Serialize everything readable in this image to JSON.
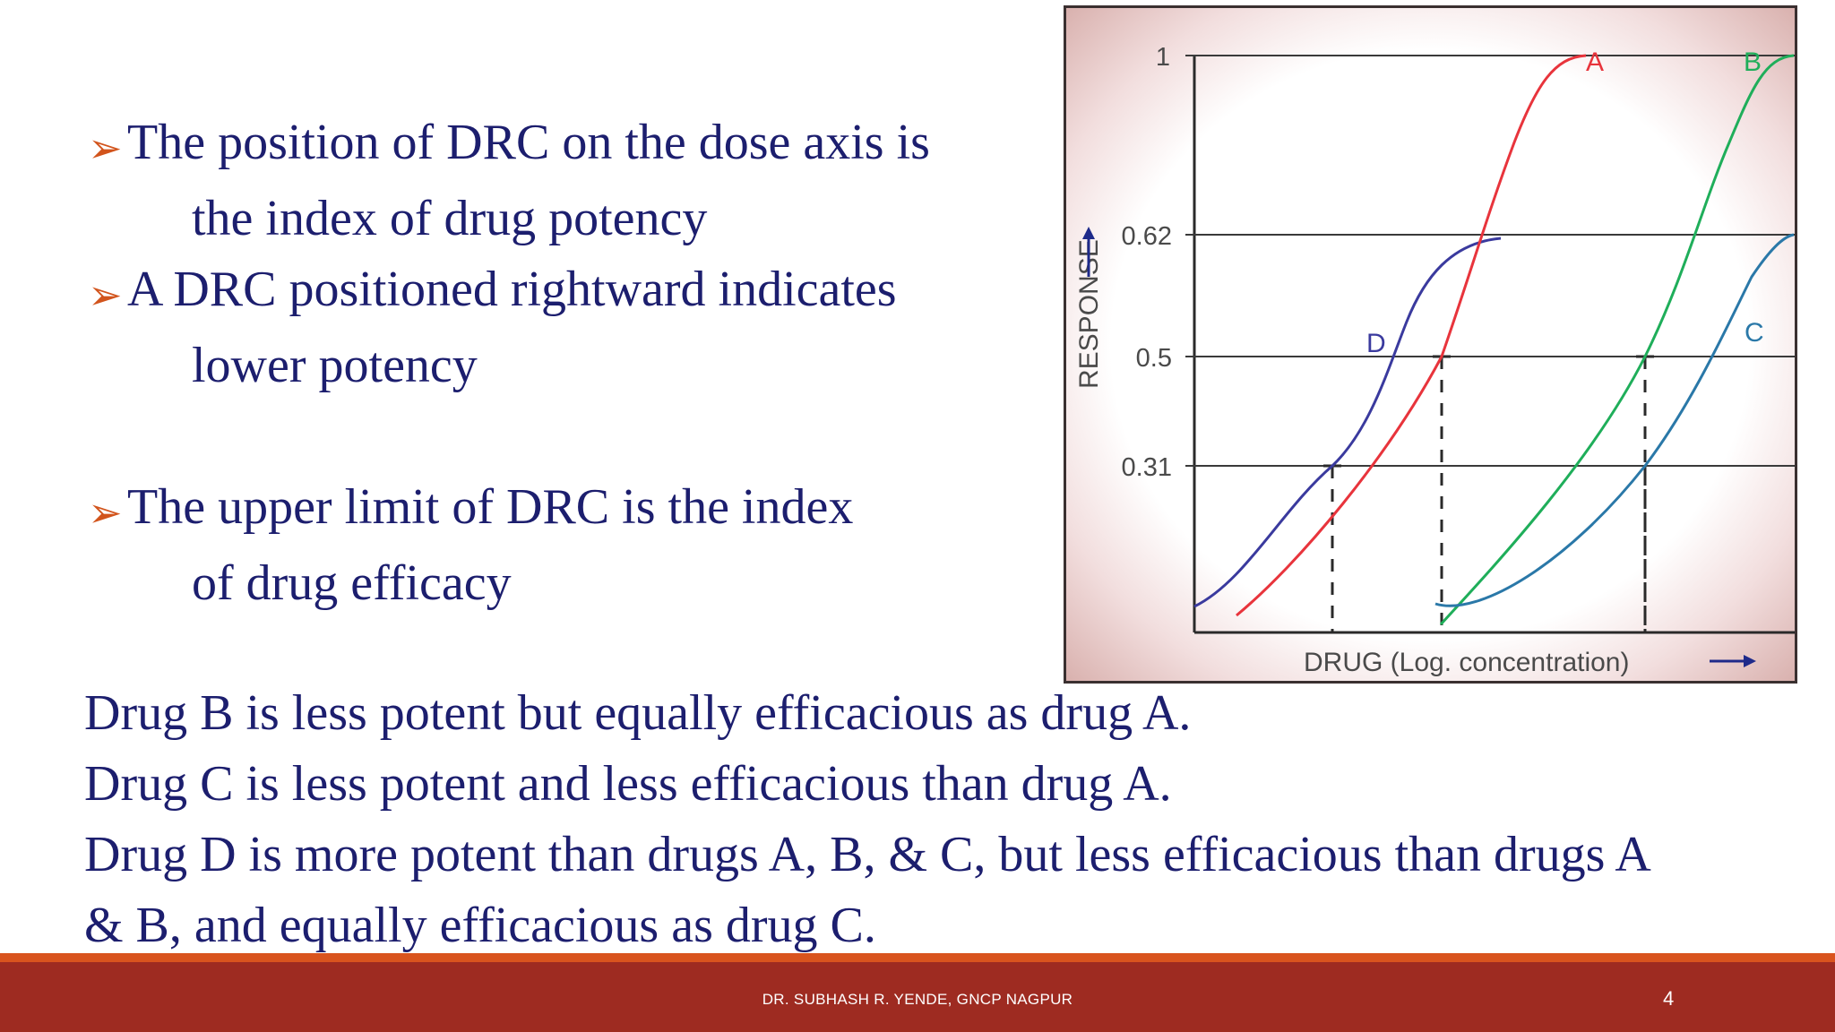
{
  "bullets": [
    {
      "lines": [
        "The position of DRC on the dose axis is",
        "the index of drug potency"
      ]
    },
    {
      "lines": [
        "A DRC positioned rightward indicates",
        "lower potency"
      ]
    },
    {
      "lines": [
        "The upper limit of DRC is the index",
        "of drug efficacy"
      ]
    }
  ],
  "statements": [
    "Drug B is less potent but equally efficacious as drug A.",
    "Drug C is less potent and less efficacious than drug A.",
    "Drug D is more potent than drugs A, B, & C, but less efficacious than drugs A",
    "& B, and equally efficacious as drug C."
  ],
  "figure": {
    "y_ticks": [
      "1",
      "0.62",
      "0.5",
      "0.31"
    ],
    "y_label": "RESPONSE",
    "x_label": "DRUG (Log. concentration)",
    "curves": [
      {
        "label": "A",
        "color": "#e8343c"
      },
      {
        "label": "B",
        "color": "#1fae5a"
      },
      {
        "label": "C",
        "color": "#2a78a8"
      },
      {
        "label": "D",
        "color": "#3a3a9e"
      }
    ]
  },
  "footer": {
    "author": "DR. SUBHASH R. YENDE, GNCP NAGPUR",
    "page_number": "4"
  }
}
